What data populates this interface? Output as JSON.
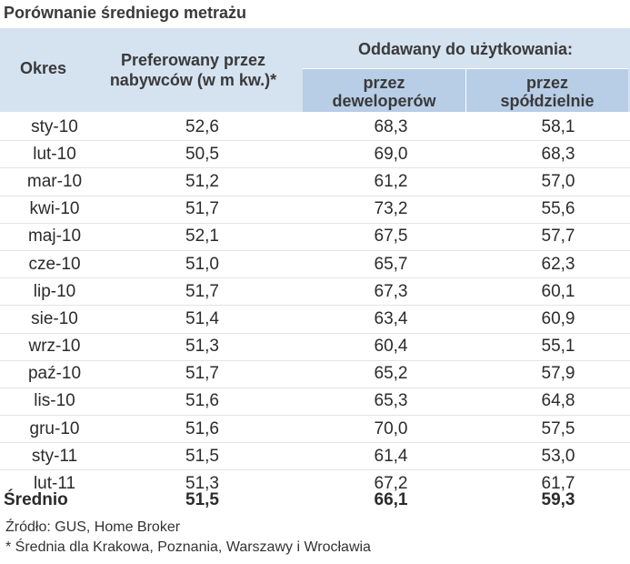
{
  "title": "Porównanie średniego metrażu",
  "headers": {
    "okres": "Okres",
    "preferowany_l1": "Preferowany przez",
    "preferowany_l2": "nabywców (w m kw.)*",
    "oddawany": "Oddawany do użytkowania:",
    "deweloperow_l1": "przez",
    "deweloperow_l2": "deweloperów",
    "spoldzielnie_l1": "przez",
    "spoldzielnie_l2": "spółdzielnie"
  },
  "rows": [
    {
      "okres": "sty-10",
      "preferowany": "52,6",
      "deweloperow": "68,3",
      "spoldzielnie": "58,1"
    },
    {
      "okres": "lut-10",
      "preferowany": "50,5",
      "deweloperow": "69,0",
      "spoldzielnie": "68,3"
    },
    {
      "okres": "mar-10",
      "preferowany": "51,2",
      "deweloperow": "61,2",
      "spoldzielnie": "57,0"
    },
    {
      "okres": "kwi-10",
      "preferowany": "51,7",
      "deweloperow": "73,2",
      "spoldzielnie": "55,6"
    },
    {
      "okres": "maj-10",
      "preferowany": "52,1",
      "deweloperow": "67,5",
      "spoldzielnie": "57,7"
    },
    {
      "okres": "cze-10",
      "preferowany": "51,0",
      "deweloperow": "65,7",
      "spoldzielnie": "62,3"
    },
    {
      "okres": "lip-10",
      "preferowany": "51,7",
      "deweloperow": "67,3",
      "spoldzielnie": "60,1"
    },
    {
      "okres": "sie-10",
      "preferowany": "51,4",
      "deweloperow": "63,4",
      "spoldzielnie": "60,9"
    },
    {
      "okres": "wrz-10",
      "preferowany": "51,3",
      "deweloperow": "60,4",
      "spoldzielnie": "55,1"
    },
    {
      "okres": "paź-10",
      "preferowany": "51,7",
      "deweloperow": "65,2",
      "spoldzielnie": "57,9"
    },
    {
      "okres": "lis-10",
      "preferowany": "51,6",
      "deweloperow": "65,3",
      "spoldzielnie": "64,8"
    },
    {
      "okres": "gru-10",
      "preferowany": "51,6",
      "deweloperow": "70,0",
      "spoldzielnie": "57,5"
    },
    {
      "okres": "sty-11",
      "preferowany": "51,5",
      "deweloperow": "61,4",
      "spoldzielnie": "53,0"
    },
    {
      "okres": "lut-11",
      "preferowany": "51,3",
      "deweloperow": "67,2",
      "spoldzielnie": "61,7"
    }
  ],
  "average": {
    "label": "Średnio",
    "preferowany": "51,5",
    "deweloperow": "66,1",
    "spoldzielnie": "59,3"
  },
  "footnotes": {
    "source": "Źródło: GUS, Home Broker",
    "note": "* Średnia dla Krakowa, Poznania, Warszawy i Wrocławia"
  }
}
